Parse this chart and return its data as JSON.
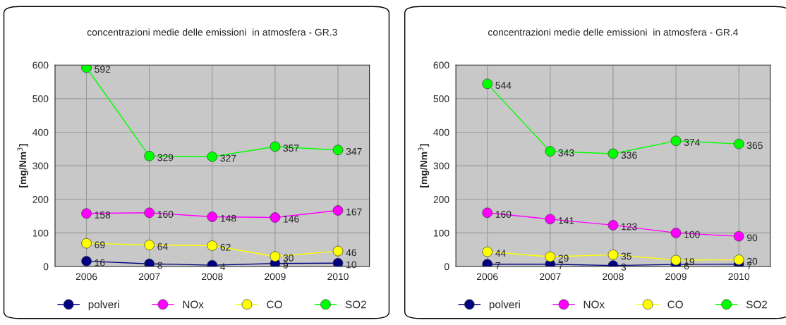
{
  "chart_data": [
    {
      "type": "line",
      "title": "concentrazioni medie delle emissioni  in atmosfera - GR.3",
      "ylabel": "[mg/Nm$^{3}$]",
      "categories": [
        "2006",
        "2007",
        "2008",
        "2009",
        "2010"
      ],
      "ylim": [
        0,
        600
      ],
      "yticks": [
        0,
        100,
        200,
        300,
        400,
        500,
        600
      ],
      "grid": true,
      "legend": "bottom",
      "marker": "circle",
      "data_labels": true,
      "series": [
        {
          "name": "polveri",
          "color": "#000080",
          "values": [
            16,
            8,
            4,
            9,
            10
          ]
        },
        {
          "name": "NOx",
          "color": "#ff00ff",
          "values": [
            158,
            160,
            148,
            146,
            167
          ]
        },
        {
          "name": "CO",
          "color": "#ffff00",
          "values": [
            69,
            64,
            62,
            30,
            46
          ]
        },
        {
          "name": "SO2",
          "color": "#00ff00",
          "values": [
            592,
            329,
            327,
            357,
            347
          ]
        }
      ]
    },
    {
      "type": "line",
      "title": "concentrazioni medie delle emissioni  in atmosfera - GR.4",
      "ylabel": "[mg/Nm$^{3}$]",
      "categories": [
        "2006",
        "2007",
        "2008",
        "2009",
        "2010"
      ],
      "ylim": [
        0,
        600
      ],
      "yticks": [
        0,
        100,
        200,
        300,
        400,
        500,
        600
      ],
      "grid": true,
      "legend": "bottom",
      "marker": "circle",
      "data_labels": true,
      "series": [
        {
          "name": "polveri",
          "color": "#000080",
          "values": [
            7,
            7,
            3,
            6,
            7
          ]
        },
        {
          "name": "NOx",
          "color": "#ff00ff",
          "values": [
            160,
            141,
            123,
            100,
            90
          ]
        },
        {
          "name": "CO",
          "color": "#ffff00",
          "values": [
            44,
            29,
            35,
            19,
            20
          ]
        },
        {
          "name": "SO2",
          "color": "#00ff00",
          "values": [
            544,
            343,
            336,
            374,
            365
          ]
        }
      ]
    }
  ]
}
